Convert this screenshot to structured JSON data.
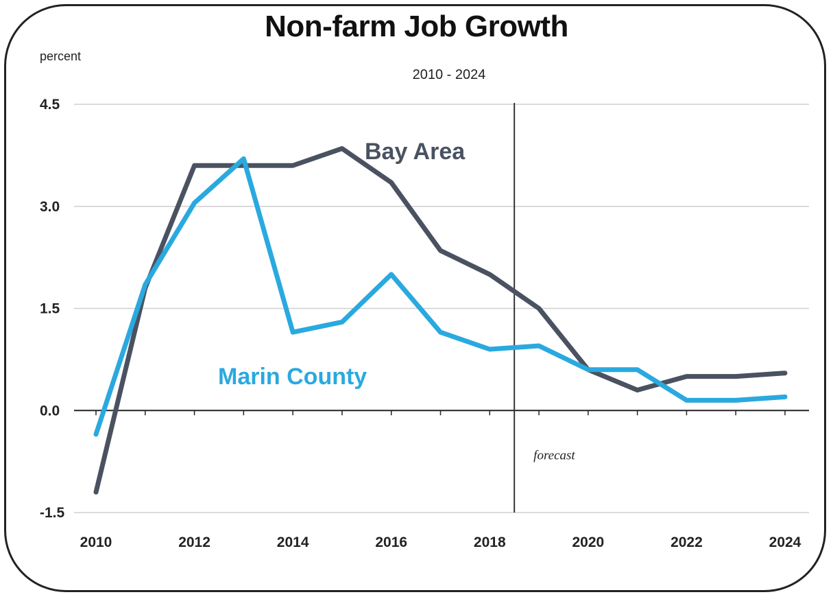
{
  "chart_data": {
    "type": "line",
    "title": "Non-farm Job Growth",
    "subtitle": "2010 - 2024",
    "ylabel": "percent",
    "xlabel": "",
    "ylim": [
      -1.5,
      4.5
    ],
    "xlim": [
      2010,
      2024
    ],
    "yticks": [
      "4.5",
      "3.0",
      "1.5",
      "0.0",
      "-1.5"
    ],
    "ytick_values": [
      4.5,
      3.0,
      1.5,
      0.0,
      -1.5
    ],
    "xticks": [
      "2010",
      "2012",
      "2014",
      "2016",
      "2018",
      "2020",
      "2022",
      "2024"
    ],
    "xtick_values": [
      2010,
      2012,
      2014,
      2016,
      2018,
      2020,
      2022,
      2024
    ],
    "grid": true,
    "forecast_line_x": 2018.5,
    "forecast_label": "forecast",
    "series": [
      {
        "name": "Bay Area",
        "color": "#4a5261",
        "x": [
          2010,
          2011,
          2012,
          2013,
          2014,
          2015,
          2016,
          2017,
          2018,
          2019,
          2020,
          2021,
          2022,
          2023,
          2024
        ],
        "values": [
          -1.2,
          1.8,
          3.6,
          3.6,
          3.6,
          3.85,
          3.35,
          2.35,
          2.0,
          1.5,
          0.6,
          0.3,
          0.5,
          0.5,
          0.55
        ]
      },
      {
        "name": "Marin County",
        "color": "#2aa9df",
        "x": [
          2010,
          2011,
          2012,
          2013,
          2014,
          2015,
          2016,
          2017,
          2018,
          2019,
          2020,
          2021,
          2022,
          2023,
          2024
        ],
        "values": [
          -0.35,
          1.85,
          3.05,
          3.7,
          1.15,
          1.3,
          2.0,
          1.15,
          0.9,
          0.95,
          0.6,
          0.6,
          0.15,
          0.15,
          0.2
        ]
      }
    ]
  }
}
